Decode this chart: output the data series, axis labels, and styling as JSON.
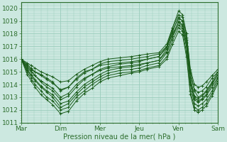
{
  "xlabel": "Pression niveau de la mer( hPa )",
  "xlim": [
    0,
    5
  ],
  "ylim": [
    1011,
    1020.5
  ],
  "yticks": [
    1011,
    1012,
    1013,
    1014,
    1015,
    1016,
    1017,
    1018,
    1019,
    1020
  ],
  "xtick_labels": [
    "Mar",
    "Dim",
    "Mer",
    "Jeu",
    "Ven",
    "Sam"
  ],
  "xtick_positions": [
    0,
    1,
    2,
    3,
    4,
    5
  ],
  "bg_color": "#cce8e0",
  "grid_color": "#99ccbb",
  "line_color": "#1a5c1a",
  "lines": [
    {
      "x": [
        0,
        0.15,
        0.25,
        0.35,
        0.5,
        0.65,
        0.8,
        1.0,
        1.2,
        1.4,
        1.6,
        1.8,
        2.0,
        2.2,
        2.5,
        2.8,
        3.0,
        3.2,
        3.5,
        3.7,
        3.85,
        4.0,
        4.1,
        4.2,
        4.3,
        4.4,
        4.5,
        4.6,
        4.7,
        4.85,
        5.0
      ],
      "y": [
        1016.0,
        1015.5,
        1015.2,
        1015.0,
        1014.8,
        1014.5,
        1014.2,
        1013.5,
        1013.8,
        1014.5,
        1015.0,
        1015.2,
        1015.5,
        1015.6,
        1015.7,
        1015.8,
        1015.9,
        1016.0,
        1016.2,
        1017.0,
        1018.5,
        1019.8,
        1019.5,
        1018.0,
        1015.0,
        1013.5,
        1013.0,
        1013.2,
        1013.5,
        1014.2,
        1015.0
      ]
    },
    {
      "x": [
        0,
        0.15,
        0.25,
        0.35,
        0.5,
        0.65,
        0.8,
        1.0,
        1.2,
        1.4,
        1.6,
        1.8,
        2.0,
        2.2,
        2.5,
        2.8,
        3.0,
        3.2,
        3.5,
        3.7,
        3.85,
        4.0,
        4.1,
        4.2,
        4.3,
        4.4,
        4.5,
        4.6,
        4.7,
        4.85,
        5.0
      ],
      "y": [
        1016.0,
        1015.3,
        1015.0,
        1014.7,
        1014.3,
        1014.0,
        1013.7,
        1013.0,
        1013.3,
        1014.0,
        1014.5,
        1014.8,
        1015.1,
        1015.3,
        1015.4,
        1015.5,
        1015.6,
        1015.7,
        1015.9,
        1016.8,
        1018.2,
        1019.3,
        1019.0,
        1017.5,
        1014.5,
        1013.0,
        1012.7,
        1012.9,
        1013.2,
        1014.0,
        1014.8
      ]
    },
    {
      "x": [
        0,
        0.15,
        0.25,
        0.35,
        0.5,
        0.65,
        0.8,
        1.0,
        1.2,
        1.4,
        1.6,
        1.8,
        2.0,
        2.2,
        2.5,
        2.8,
        3.0,
        3.2,
        3.5,
        3.7,
        3.85,
        4.0,
        4.1,
        4.2,
        4.3,
        4.4,
        4.5,
        4.6,
        4.7,
        4.85,
        5.0
      ],
      "y": [
        1016.0,
        1015.1,
        1014.7,
        1014.3,
        1013.8,
        1013.4,
        1013.0,
        1012.2,
        1012.5,
        1013.2,
        1013.8,
        1014.2,
        1014.6,
        1014.9,
        1015.1,
        1015.2,
        1015.3,
        1015.5,
        1015.7,
        1016.5,
        1017.8,
        1019.0,
        1018.7,
        1017.0,
        1014.0,
        1012.5,
        1012.3,
        1012.5,
        1012.8,
        1013.5,
        1014.5
      ]
    },
    {
      "x": [
        0,
        0.15,
        0.25,
        0.35,
        0.5,
        0.65,
        0.8,
        1.0,
        1.2,
        1.4,
        1.6,
        1.8,
        2.0,
        2.2,
        2.5,
        2.8,
        3.0,
        3.2,
        3.5,
        3.7,
        3.85,
        4.0,
        4.1,
        4.2,
        4.3,
        4.4,
        4.5,
        4.6,
        4.7,
        4.85,
        5.0
      ],
      "y": [
        1016.0,
        1015.0,
        1014.5,
        1014.0,
        1013.5,
        1013.0,
        1012.7,
        1012.0,
        1012.2,
        1013.0,
        1013.5,
        1014.0,
        1014.4,
        1014.7,
        1014.9,
        1015.0,
        1015.1,
        1015.3,
        1015.5,
        1016.2,
        1017.5,
        1018.5,
        1018.2,
        1016.5,
        1013.5,
        1012.2,
        1012.0,
        1012.2,
        1012.5,
        1013.3,
        1014.3
      ]
    },
    {
      "x": [
        0,
        0.15,
        0.25,
        0.35,
        0.5,
        0.65,
        0.8,
        1.0,
        1.2,
        1.4,
        1.6,
        1.8,
        2.0,
        2.2,
        2.5,
        2.8,
        3.0,
        3.2,
        3.5,
        3.7,
        3.85,
        4.0,
        4.1,
        4.2,
        4.3,
        4.4,
        4.5,
        4.6,
        4.7,
        4.85,
        5.0
      ],
      "y": [
        1016.0,
        1014.8,
        1014.3,
        1013.8,
        1013.2,
        1012.8,
        1012.4,
        1011.7,
        1011.9,
        1012.7,
        1013.3,
        1013.7,
        1014.2,
        1014.5,
        1014.7,
        1014.9,
        1015.0,
        1015.2,
        1015.4,
        1016.0,
        1017.2,
        1018.2,
        1017.9,
        1016.2,
        1013.2,
        1012.0,
        1011.8,
        1012.0,
        1012.3,
        1013.1,
        1014.1
      ]
    },
    {
      "x": [
        0,
        0.15,
        0.25,
        0.35,
        0.5,
        0.65,
        0.8,
        1.0,
        1.2,
        1.4,
        1.6,
        1.8,
        2.0,
        2.2,
        2.5,
        2.8,
        3.0,
        3.2,
        3.5,
        3.7,
        3.85,
        4.0,
        4.1,
        4.2,
        4.3,
        4.4,
        4.5,
        4.6,
        4.7,
        4.85,
        5.0
      ],
      "y": [
        1016.0,
        1015.7,
        1015.5,
        1015.3,
        1015.0,
        1014.8,
        1014.6,
        1014.2,
        1014.3,
        1014.8,
        1015.2,
        1015.5,
        1015.8,
        1016.0,
        1016.1,
        1016.2,
        1016.3,
        1016.4,
        1016.5,
        1017.2,
        1018.5,
        1019.5,
        1019.3,
        1018.0,
        1015.2,
        1014.0,
        1013.8,
        1013.9,
        1014.2,
        1014.7,
        1015.2
      ]
    },
    {
      "x": [
        0,
        0.15,
        0.25,
        0.35,
        0.5,
        0.65,
        0.8,
        1.0,
        1.2,
        1.4,
        1.6,
        1.8,
        2.0,
        2.2,
        2.5,
        2.8,
        3.0,
        3.2,
        3.5,
        3.7,
        3.85,
        4.0,
        4.1,
        4.2,
        4.3,
        4.4,
        4.5,
        4.6,
        4.7,
        4.85,
        5.0
      ],
      "y": [
        1016.0,
        1015.6,
        1015.3,
        1015.0,
        1014.7,
        1014.4,
        1014.1,
        1013.6,
        1013.8,
        1014.4,
        1014.9,
        1015.2,
        1015.6,
        1015.8,
        1015.9,
        1016.0,
        1016.1,
        1016.2,
        1016.4,
        1017.0,
        1018.3,
        1019.2,
        1019.0,
        1017.7,
        1014.9,
        1013.6,
        1013.4,
        1013.5,
        1013.8,
        1014.5,
        1015.0
      ]
    },
    {
      "x": [
        0,
        0.15,
        0.25,
        0.35,
        0.5,
        0.65,
        0.8,
        1.0,
        1.2,
        1.4,
        1.6,
        1.8,
        2.0,
        2.2,
        2.5,
        2.8,
        3.0,
        3.2,
        3.5,
        3.7,
        3.85,
        4.0,
        4.1,
        4.2,
        4.3,
        4.4,
        4.5,
        4.6,
        4.7,
        4.85,
        5.0
      ],
      "y": [
        1016.0,
        1015.4,
        1015.1,
        1014.7,
        1014.2,
        1013.8,
        1013.5,
        1012.8,
        1013.1,
        1013.8,
        1014.4,
        1014.8,
        1015.2,
        1015.4,
        1015.6,
        1015.7,
        1015.8,
        1016.0,
        1016.2,
        1016.9,
        1018.0,
        1018.9,
        1018.6,
        1017.3,
        1014.4,
        1013.1,
        1012.9,
        1013.1,
        1013.4,
        1014.1,
        1014.8
      ]
    },
    {
      "x": [
        0,
        0.15,
        0.25,
        0.35,
        0.5,
        0.65,
        0.8,
        1.0,
        1.2,
        1.4,
        1.6,
        1.8,
        2.0,
        2.2,
        2.5,
        2.8,
        3.0,
        3.2,
        3.5,
        3.7,
        3.85,
        4.0,
        4.1,
        4.2,
        4.3,
        4.4,
        4.5,
        4.6,
        4.7,
        4.85,
        5.0
      ],
      "y": [
        1016.0,
        1015.2,
        1014.8,
        1014.4,
        1013.9,
        1013.5,
        1013.2,
        1012.5,
        1012.7,
        1013.4,
        1014.0,
        1014.4,
        1014.8,
        1015.1,
        1015.3,
        1015.4,
        1015.5,
        1015.7,
        1015.9,
        1016.6,
        1017.8,
        1018.7,
        1018.4,
        1017.0,
        1014.2,
        1012.8,
        1012.6,
        1012.8,
        1013.1,
        1013.8,
        1014.6
      ]
    }
  ]
}
